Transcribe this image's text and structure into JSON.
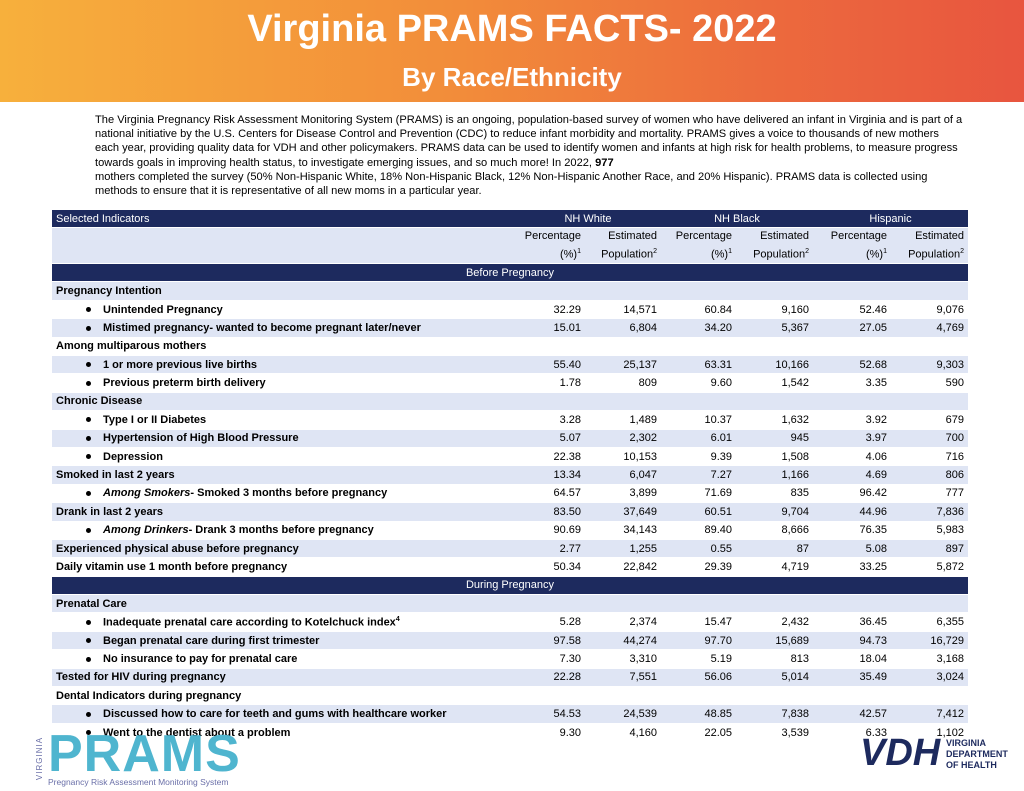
{
  "header": {
    "title": "Virginia PRAMS FACTS- 2022",
    "subtitle": "By Race/Ethnicity"
  },
  "intro": {
    "before": "The Virginia Pregnancy Risk Assessment Monitoring System (PRAMS) is an ongoing, population-based survey of women who have delivered an infant in Virginia and is part of a national initiative by the U.S. Centers for Disease Control and Prevention (CDC) to reduce infant morbidity and mortality. PRAMS gives a voice to thousands of new mothers each year, providing quality data for VDH and other policymakers. PRAMS data can be used to identify women and infants at high risk for health problems, to measure progress towards goals in improving health status, to investigate emerging issues, and so much more! In 2022,",
    "bold": "977",
    "after": "mothers completed the survey (50% Non-Hispanic White, 18% Non-Hispanic Black, 12% Non-Hispanic Another Race, and 20% Hispanic). PRAMS data is collected using methods to ensure that it is representative of all new moms in a particular year."
  },
  "table": {
    "indicator_header": "Selected Indicators",
    "columns": [
      {
        "group": "NH White",
        "subcolumns": [
          {
            "label": "Percentage (%)",
            "note": "1"
          },
          {
            "label": "Estimated Population",
            "note": "2"
          }
        ]
      },
      {
        "group": "NH Black",
        "subcolumns": [
          {
            "label": "Percentage (%)",
            "note": "1"
          },
          {
            "label": "Estimated Population",
            "note": "2"
          }
        ]
      },
      {
        "group": "Hispanic",
        "subcolumns": [
          {
            "label": "Percentage (%)",
            "note": "1"
          },
          {
            "label": "Estimated Population",
            "note": "2"
          }
        ]
      }
    ],
    "sections": [
      {
        "title": "Before Pregnancy",
        "groups": [
          {
            "label": "Pregnancy Intention",
            "items": [
              {
                "label": "Unintended Pregnancy",
                "values": [
                  "32.29",
                  "14,571",
                  "60.84",
                  "9,160",
                  "52.46",
                  "9,076"
                ]
              },
              {
                "label": "Mistimed pregnancy- wanted to become pregnant later/never",
                "values": [
                  "15.01",
                  "6,804",
                  "34.20",
                  "5,367",
                  "27.05",
                  "4,769"
                ]
              }
            ]
          },
          {
            "label": "Among multiparous mothers",
            "items": [
              {
                "label": "1 or more previous live births",
                "values": [
                  "55.40",
                  "25,137",
                  "63.31",
                  "10,166",
                  "52.68",
                  "9,303"
                ]
              },
              {
                "label": "Previous preterm birth delivery",
                "values": [
                  "1.78",
                  "809",
                  "9.60",
                  "1,542",
                  "3.35",
                  "590"
                ]
              }
            ]
          },
          {
            "label": "Chronic Disease",
            "items": [
              {
                "label": "Type I or II Diabetes",
                "values": [
                  "3.28",
                  "1,489",
                  "10.37",
                  "1,632",
                  "3.92",
                  "679"
                ]
              },
              {
                "label": "Hypertension of High Blood Pressure",
                "values": [
                  "5.07",
                  "2,302",
                  "6.01",
                  "945",
                  "3.97",
                  "700"
                ]
              },
              {
                "label": "Depression",
                "values": [
                  "22.38",
                  "10,153",
                  "9.39",
                  "1,508",
                  "4.06",
                  "716"
                ]
              }
            ]
          },
          {
            "label": "Smoked in last 2 years",
            "values": [
              "13.34",
              "6,047",
              "7.27",
              "1,166",
              "4.69",
              "806"
            ],
            "items": [
              {
                "prefix": "Among Smokers",
                "label": "- Smoked 3 months before pregnancy",
                "values": [
                  "64.57",
                  "3,899",
                  "71.69",
                  "835",
                  "96.42",
                  "777"
                ]
              }
            ]
          },
          {
            "label": "Drank in last 2 years",
            "values": [
              "83.50",
              "37,649",
              "60.51",
              "9,704",
              "44.96",
              "7,836"
            ],
            "items": [
              {
                "prefix": "Among Drinkers",
                "label": "- Drank 3 months before pregnancy",
                "values": [
                  "90.69",
                  "34,143",
                  "89.40",
                  "8,666",
                  "76.35",
                  "5,983"
                ]
              }
            ]
          },
          {
            "label": "Experienced physical abuse before pregnancy",
            "values": [
              "2.77",
              "1,255",
              "0.55",
              "87",
              "5.08",
              "897"
            ]
          },
          {
            "label": "Daily vitamin use 1 month before pregnancy",
            "values": [
              "50.34",
              "22,842",
              "29.39",
              "4,719",
              "33.25",
              "5,872"
            ]
          }
        ]
      },
      {
        "title": "During Pregnancy",
        "groups": [
          {
            "label": "Prenatal Care",
            "items": [
              {
                "label": "Inadequate prenatal care according to Kotelchuck index",
                "note": "4",
                "values": [
                  "5.28",
                  "2,374",
                  "15.47",
                  "2,432",
                  "36.45",
                  "6,355"
                ]
              },
              {
                "label": "Began prenatal care during first trimester",
                "values": [
                  "97.58",
                  "44,274",
                  "97.70",
                  "15,689",
                  "94.73",
                  "16,729"
                ]
              },
              {
                "label": "No insurance to pay for prenatal care",
                "values": [
                  "7.30",
                  "3,310",
                  "5.19",
                  "813",
                  "18.04",
                  "3,168"
                ]
              }
            ]
          },
          {
            "label": "Tested for HIV during pregnancy",
            "values": [
              "22.28",
              "7,551",
              "56.06",
              "5,014",
              "35.49",
              "3,024"
            ]
          },
          {
            "label": "Dental Indicators during pregnancy",
            "items": [
              {
                "label": "Discussed how to care for teeth and gums with healthcare worker",
                "values": [
                  "54.53",
                  "24,539",
                  "48.85",
                  "7,838",
                  "42.57",
                  "7,412"
                ]
              },
              {
                "label": "Went to the dentist about a problem",
                "values": [
                  "9.30",
                  "4,160",
                  "22.05",
                  "3,539",
                  "6.33",
                  "1,102"
                ]
              }
            ]
          }
        ]
      }
    ]
  },
  "footer": {
    "prams": {
      "state": "VIRGINIA",
      "name": "PRAMS",
      "tagline": "Pregnancy Risk Assessment Monitoring System"
    },
    "vdh": {
      "abbr": "VDH",
      "name": [
        "VIRGINIA",
        "DEPARTMENT",
        "OF HEALTH"
      ]
    }
  }
}
